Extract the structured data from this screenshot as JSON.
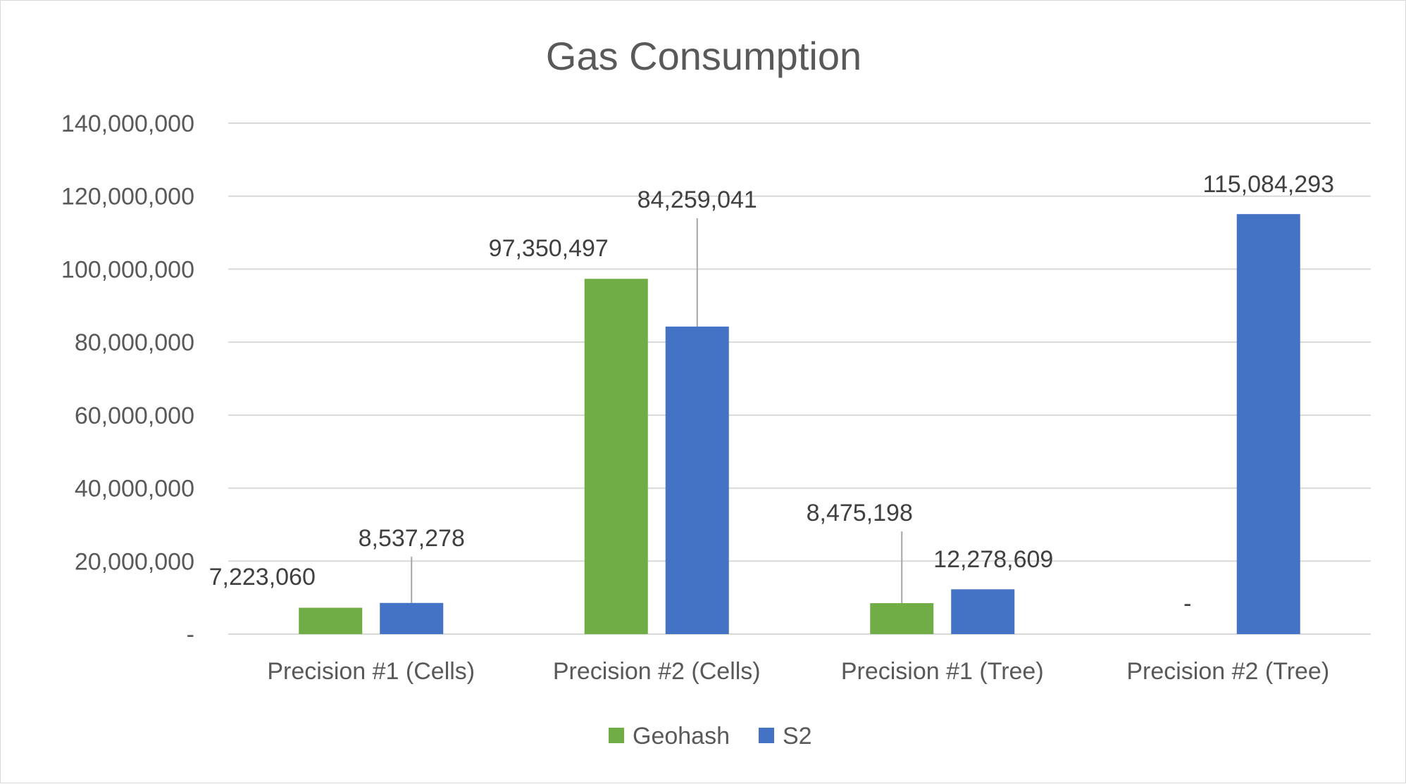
{
  "chart_data": {
    "type": "bar",
    "title": "Gas Consumption",
    "xlabel": "",
    "ylabel": "",
    "categories": [
      "Precision #1 (Cells)",
      "Precision #2 (Cells)",
      "Precision #1 (Tree)",
      "Precision #2 (Tree)"
    ],
    "series": [
      {
        "name": "Geohash",
        "color": "#70ad47",
        "values": [
          7223060,
          97350497,
          8475198,
          0
        ],
        "labels": [
          "7,223,060",
          "97,350,497",
          "8,475,198",
          "-"
        ]
      },
      {
        "name": "S2",
        "color": "#4472c4",
        "values": [
          8537278,
          84259041,
          12278609,
          115084293
        ],
        "labels": [
          "8,537,278",
          "84,259,041",
          "12,278,609",
          "115,084,293"
        ]
      }
    ],
    "ylim": [
      0,
      140000000
    ],
    "yticks": [
      0,
      20000000,
      40000000,
      60000000,
      80000000,
      100000000,
      120000000,
      140000000
    ],
    "ytick_labels": [
      "-",
      "20,000,000",
      "40,000,000",
      "60,000,000",
      "80,000,000",
      "100,000,000",
      "120,000,000",
      "140,000,000"
    ],
    "grid": true,
    "legend": "bottom",
    "gridline_color": "#d9d9d9"
  }
}
